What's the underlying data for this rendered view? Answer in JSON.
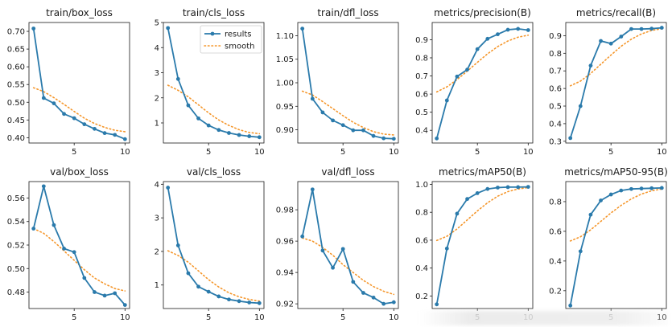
{
  "chart_data": [
    {
      "type": "line",
      "title": "train/box_loss",
      "x": [
        1,
        2,
        3,
        4,
        5,
        6,
        7,
        8,
        9,
        10
      ],
      "series": [
        {
          "name": "results",
          "values": [
            0.708,
            0.512,
            0.497,
            0.467,
            0.455,
            0.438,
            0.425,
            0.413,
            0.408,
            0.396
          ]
        },
        {
          "name": "smooth",
          "values": [
            0.541,
            0.53,
            0.513,
            0.494,
            0.474,
            0.455,
            0.44,
            0.429,
            0.421,
            0.417
          ]
        }
      ],
      "ylim": [
        0.385,
        0.725
      ],
      "xticks": [
        5,
        10
      ],
      "yticks": [
        0.4,
        0.45,
        0.5,
        0.55,
        0.6,
        0.65,
        0.7
      ],
      "ytick_labels": [
        "0.40",
        "0.45",
        "0.50",
        "0.55",
        "0.60",
        "0.65",
        "0.70"
      ]
    },
    {
      "type": "line",
      "title": "train/cls_loss",
      "x": [
        1,
        2,
        3,
        4,
        5,
        6,
        7,
        8,
        9,
        10
      ],
      "series": [
        {
          "name": "results",
          "values": [
            4.78,
            2.75,
            1.7,
            1.18,
            0.9,
            0.72,
            0.6,
            0.52,
            0.47,
            0.43
          ]
        },
        {
          "name": "smooth",
          "values": [
            2.5,
            2.3,
            2.04,
            1.72,
            1.4,
            1.12,
            0.9,
            0.73,
            0.62,
            0.57
          ]
        }
      ],
      "ylim": [
        0.2,
        5.0
      ],
      "xticks": [
        5,
        10
      ],
      "yticks": [
        1,
        2,
        3,
        4,
        5
      ],
      "ytick_labels": [
        "1",
        "2",
        "3",
        "4",
        "5"
      ]
    },
    {
      "type": "line",
      "title": "train/dfl_loss",
      "x": [
        1,
        2,
        3,
        4,
        5,
        6,
        7,
        8,
        9,
        10
      ],
      "series": [
        {
          "name": "results",
          "values": [
            1.115,
            0.966,
            0.937,
            0.92,
            0.91,
            0.899,
            0.899,
            0.887,
            0.882,
            0.881
          ]
        },
        {
          "name": "smooth",
          "values": [
            0.982,
            0.974,
            0.96,
            0.945,
            0.93,
            0.916,
            0.905,
            0.896,
            0.891,
            0.889
          ]
        }
      ],
      "ylim": [
        0.872,
        1.128
      ],
      "xticks": [
        5,
        10
      ],
      "yticks": [
        0.9,
        0.95,
        1.0,
        1.05,
        1.1
      ],
      "ytick_labels": [
        "0.90",
        "0.95",
        "1.00",
        "1.05",
        "1.10"
      ]
    },
    {
      "type": "line",
      "title": "metrics/precision(B)",
      "x": [
        1,
        2,
        3,
        4,
        5,
        6,
        7,
        8,
        9,
        10
      ],
      "series": [
        {
          "name": "results",
          "values": [
            0.355,
            0.565,
            0.697,
            0.735,
            0.848,
            0.905,
            0.93,
            0.955,
            0.96,
            0.953
          ]
        },
        {
          "name": "smooth",
          "values": [
            0.612,
            0.64,
            0.68,
            0.727,
            0.775,
            0.822,
            0.862,
            0.893,
            0.914,
            0.925
          ]
        }
      ],
      "ylim": [
        0.33,
        0.995
      ],
      "xticks": [
        5,
        10
      ],
      "yticks": [
        0.4,
        0.5,
        0.6,
        0.7,
        0.8,
        0.9
      ],
      "ytick_labels": [
        "0.4",
        "0.5",
        "0.6",
        "0.7",
        "0.8",
        "0.9"
      ]
    },
    {
      "type": "line",
      "title": "metrics/recall(B)",
      "x": [
        1,
        2,
        3,
        4,
        5,
        6,
        7,
        8,
        9,
        10
      ],
      "series": [
        {
          "name": "results",
          "values": [
            0.318,
            0.5,
            0.73,
            0.87,
            0.855,
            0.895,
            0.938,
            0.938,
            0.94,
            0.945
          ]
        },
        {
          "name": "smooth",
          "values": [
            0.615,
            0.642,
            0.685,
            0.738,
            0.79,
            0.84,
            0.88,
            0.91,
            0.93,
            0.94
          ]
        }
      ],
      "ylim": [
        0.29,
        0.975
      ],
      "xticks": [
        5,
        10
      ],
      "yticks": [
        0.3,
        0.4,
        0.5,
        0.6,
        0.7,
        0.8,
        0.9
      ],
      "ytick_labels": [
        "0.3",
        "0.4",
        "0.5",
        "0.6",
        "0.7",
        "0.8",
        "0.9"
      ]
    },
    {
      "type": "line",
      "title": "val/box_loss",
      "x": [
        1,
        2,
        3,
        4,
        5,
        6,
        7,
        8,
        9,
        10
      ],
      "series": [
        {
          "name": "results",
          "values": [
            0.534,
            0.57,
            0.537,
            0.517,
            0.514,
            0.492,
            0.48,
            0.477,
            0.479,
            0.469
          ]
        },
        {
          "name": "smooth",
          "values": [
            0.534,
            0.53,
            0.523,
            0.515,
            0.507,
            0.499,
            0.492,
            0.487,
            0.483,
            0.481
          ]
        }
      ],
      "ylim": [
        0.466,
        0.574
      ],
      "xticks": [
        5,
        10
      ],
      "yticks": [
        0.48,
        0.5,
        0.52,
        0.54,
        0.56
      ],
      "ytick_labels": [
        "0.48",
        "0.50",
        "0.52",
        "0.54",
        "0.56"
      ]
    },
    {
      "type": "line",
      "title": "val/cls_loss",
      "x": [
        1,
        2,
        3,
        4,
        5,
        6,
        7,
        8,
        9,
        10
      ],
      "series": [
        {
          "name": "results",
          "values": [
            3.9,
            2.18,
            1.35,
            0.95,
            0.8,
            0.66,
            0.57,
            0.52,
            0.48,
            0.46
          ]
        },
        {
          "name": "smooth",
          "values": [
            2.02,
            1.88,
            1.68,
            1.42,
            1.16,
            0.94,
            0.77,
            0.65,
            0.57,
            0.52
          ]
        }
      ],
      "ylim": [
        0.3,
        4.08
      ],
      "xticks": [
        5,
        10
      ],
      "yticks": [
        1,
        2,
        3,
        4
      ],
      "ytick_labels": [
        "1",
        "2",
        "3",
        "4"
      ]
    },
    {
      "type": "line",
      "title": "val/dfl_loss",
      "x": [
        1,
        2,
        3,
        4,
        5,
        6,
        7,
        8,
        9,
        10
      ],
      "series": [
        {
          "name": "results",
          "values": [
            0.963,
            0.993,
            0.954,
            0.943,
            0.955,
            0.934,
            0.927,
            0.924,
            0.92,
            0.921
          ]
        },
        {
          "name": "smooth",
          "values": [
            0.962,
            0.96,
            0.956,
            0.951,
            0.945,
            0.94,
            0.935,
            0.931,
            0.928,
            0.926
          ]
        }
      ],
      "ylim": [
        0.917,
        0.998
      ],
      "xticks": [
        5,
        10
      ],
      "yticks": [
        0.92,
        0.94,
        0.96,
        0.98
      ],
      "ytick_labels": [
        "0.92",
        "0.94",
        "0.96",
        "0.98"
      ]
    },
    {
      "type": "line",
      "title": "metrics/mAP50(B)",
      "x": [
        1,
        2,
        3,
        4,
        5,
        6,
        7,
        8,
        9,
        10
      ],
      "series": [
        {
          "name": "results",
          "values": [
            0.14,
            0.54,
            0.79,
            0.895,
            0.937,
            0.967,
            0.977,
            0.98,
            0.98,
            0.982
          ]
        },
        {
          "name": "smooth",
          "values": [
            0.598,
            0.628,
            0.68,
            0.745,
            0.81,
            0.868,
            0.915,
            0.948,
            0.967,
            0.977
          ]
        }
      ],
      "ylim": [
        0.11,
        1.02
      ],
      "xticks": [
        5,
        10
      ],
      "yticks": [
        0.2,
        0.4,
        0.6,
        0.8,
        1.0
      ],
      "ytick_labels": [
        "0.2",
        "0.4",
        "0.6",
        "0.8",
        "1.0"
      ]
    },
    {
      "type": "line",
      "title": "metrics/mAP50-95(B)",
      "x": [
        1,
        2,
        3,
        4,
        5,
        6,
        7,
        8,
        9,
        10
      ],
      "series": [
        {
          "name": "results",
          "values": [
            0.1,
            0.465,
            0.712,
            0.808,
            0.848,
            0.875,
            0.885,
            0.888,
            0.89,
            0.892
          ]
        },
        {
          "name": "smooth",
          "values": [
            0.535,
            0.563,
            0.61,
            0.667,
            0.724,
            0.775,
            0.818,
            0.851,
            0.873,
            0.885
          ]
        }
      ],
      "ylim": [
        0.08,
        0.935
      ],
      "xticks": [
        5,
        10
      ],
      "yticks": [
        0.2,
        0.4,
        0.6,
        0.8
      ],
      "ytick_labels": [
        "0.2",
        "0.4",
        "0.6",
        "0.8"
      ]
    }
  ],
  "legend": {
    "results": "results",
    "smooth": "smooth"
  },
  "colors": {
    "results": "#2a7aab",
    "smooth": "#f5962a",
    "axis": "#1a1a1a"
  }
}
